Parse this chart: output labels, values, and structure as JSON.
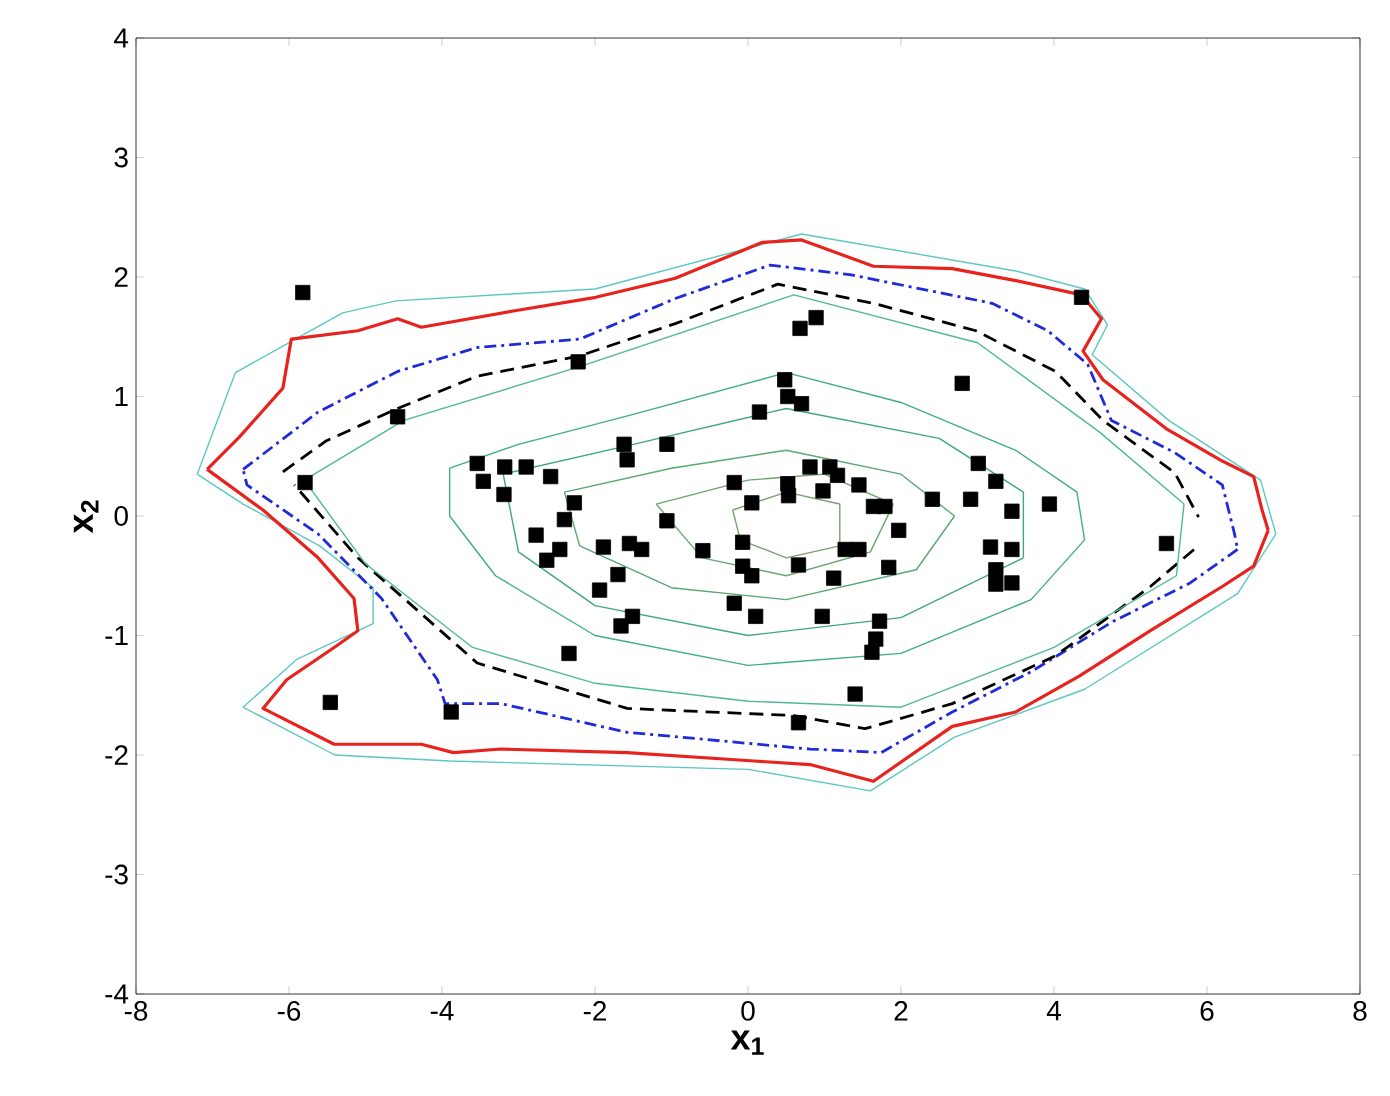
{
  "chart_data": {
    "type": "scatter",
    "xlabel": "x$_{1}$",
    "ylabel": "x$_{2}$",
    "xlim": [
      -8,
      8
    ],
    "ylim": [
      -4,
      4
    ],
    "xticks": [
      -8,
      -6,
      -4,
      -2,
      0,
      2,
      4,
      6,
      8
    ],
    "yticks": [
      -4,
      -3,
      -2,
      -1,
      0,
      1,
      2,
      3,
      4
    ],
    "series": [
      {
        "type": "line",
        "color": "#5cc8c0",
        "line_style": "solid",
        "x": [
          -7.2,
          -6.7,
          -5.3,
          -4.6,
          -2.0,
          0.7,
          3.5,
          4.4,
          4.7,
          4.5,
          5.5,
          6.7,
          6.9
        ],
        "values": [
          0.35,
          1.2,
          1.7,
          1.8,
          1.9,
          2.36,
          2.05,
          1.9,
          1.6,
          1.35,
          0.8,
          0.3,
          -0.15
        ]
      },
      {
        "type": "line",
        "color": "#5cc8c0",
        "line_style": "solid",
        "x": [
          6.9,
          6.4,
          4.4,
          2.7,
          1.6,
          0.0,
          -3.9,
          -5.4,
          -6.6,
          -5.9,
          -4.9,
          -4.9,
          -5.6,
          -6.6,
          -7.2
        ],
        "values": [
          -0.15,
          -0.65,
          -1.45,
          -1.85,
          -2.3,
          -2.12,
          -2.05,
          -2.0,
          -1.6,
          -1.2,
          -0.9,
          -0.6,
          -0.25,
          0.1,
          0.35
        ]
      },
      {
        "type": "line",
        "color": "#e8231e",
        "line_style": "solid",
        "x": [
          -7.07,
          -6.65,
          -6.08,
          -5.97,
          -5.1,
          -4.58,
          -4.27,
          -3.03,
          -1.99,
          -0.95,
          0.19,
          0.7,
          1.64,
          2.67,
          3.5,
          4.36,
          4.62,
          4.38,
          4.64,
          5.47,
          6.2,
          6.61,
          6.72,
          6.8
        ],
        "values": [
          0.39,
          0.66,
          1.07,
          1.48,
          1.55,
          1.65,
          1.58,
          1.72,
          1.83,
          1.99,
          2.29,
          2.31,
          2.09,
          2.07,
          1.97,
          1.85,
          1.65,
          1.38,
          1.14,
          0.73,
          0.46,
          0.33,
          0.05,
          -0.12
        ]
      },
      {
        "type": "line",
        "color": "#e8231e",
        "line_style": "solid",
        "x": [
          6.8,
          6.61,
          6.2,
          5.26,
          4.33,
          3.5,
          2.67,
          1.64,
          0.81,
          0.08,
          -1.58,
          -3.23,
          -3.85,
          -4.27,
          -5.41,
          -6.34,
          -6.03,
          -5.41,
          -5.1,
          -5.15,
          -5.62,
          -6.34,
          -7.07
        ],
        "values": [
          -0.12,
          -0.42,
          -0.59,
          -0.96,
          -1.34,
          -1.64,
          -1.76,
          -2.22,
          -2.08,
          -2.05,
          -1.98,
          -1.95,
          -1.98,
          -1.91,
          -1.91,
          -1.61,
          -1.37,
          -1.1,
          -0.96,
          -0.69,
          -0.35,
          0.05,
          0.39
        ]
      },
      {
        "type": "line",
        "color": "#1f2bd8",
        "line_style": "dashdot",
        "x": [
          -6.6,
          -5.62,
          -4.58,
          -3.54,
          -2.2,
          -0.95,
          0.29,
          1.33,
          3.19,
          3.92,
          4.44,
          4.75,
          5.58,
          6.2,
          6.36,
          6.4
        ],
        "values": [
          0.39,
          0.87,
          1.21,
          1.41,
          1.48,
          1.82,
          2.1,
          2.02,
          1.78,
          1.55,
          1.27,
          0.8,
          0.53,
          0.26,
          -0.15,
          -0.28
        ]
      },
      {
        "type": "line",
        "color": "#1f2bd8",
        "line_style": "dashdot",
        "x": [
          6.4,
          5.78,
          4.75,
          3.71,
          2.67,
          1.74,
          0.81,
          -1.58,
          -3.23,
          -3.96,
          -4.06,
          -4.79,
          -5.62,
          -6.55,
          -6.6
        ],
        "values": [
          -0.28,
          -0.56,
          -0.89,
          -1.3,
          -1.64,
          -1.98,
          -1.95,
          -1.81,
          -1.57,
          -1.57,
          -1.37,
          -0.69,
          -0.15,
          0.26,
          0.39
        ]
      },
      {
        "type": "line",
        "color": "#000000",
        "line_style": "dashed",
        "x": [
          -6.08,
          -5.51,
          -4.58,
          -3.54,
          -2.2,
          -0.95,
          0.39,
          1.64,
          2.98,
          4.02,
          4.64,
          5.58,
          5.89
        ],
        "values": [
          0.37,
          0.63,
          0.9,
          1.17,
          1.34,
          1.61,
          1.94,
          1.78,
          1.55,
          1.21,
          0.8,
          0.36,
          -0.01
        ]
      },
      {
        "type": "line",
        "color": "#000000",
        "line_style": "dashed",
        "x": [
          5.83,
          5.26,
          4.02,
          2.67,
          1.53,
          0.6,
          -1.58,
          -3.54,
          -5.1,
          -5.93
        ],
        "values": [
          -0.28,
          -0.59,
          -1.17,
          -1.57,
          -1.78,
          -1.67,
          -1.61,
          -1.23,
          -0.35,
          0.26
        ]
      },
      {
        "type": "line",
        "color": "#4fb89a",
        "line_style": "solid",
        "x": [
          -5.8,
          -4.5,
          -2.2,
          0.6,
          3.0,
          4.6,
          5.7
        ],
        "values": [
          0.3,
          0.8,
          1.25,
          1.85,
          1.45,
          0.7,
          0.1
        ]
      },
      {
        "type": "line",
        "color": "#4fb89a",
        "line_style": "solid",
        "x": [
          5.7,
          5.6,
          4.0,
          2.0,
          0.0,
          -2.0,
          -3.6,
          -5.0,
          -5.8
        ],
        "values": [
          0.1,
          -0.5,
          -1.1,
          -1.6,
          -1.55,
          -1.4,
          -1.1,
          -0.4,
          0.3
        ]
      },
      {
        "type": "line",
        "color": "#3fae84",
        "line_style": "solid",
        "x": [
          -3.9,
          -3.0,
          -1.5,
          0.5,
          2.0,
          3.5,
          4.3,
          4.4
        ],
        "values": [
          0.4,
          0.6,
          0.85,
          1.2,
          0.95,
          0.55,
          0.2,
          -0.2
        ]
      },
      {
        "type": "line",
        "color": "#3fae84",
        "line_style": "solid",
        "x": [
          4.4,
          3.7,
          2.0,
          0.0,
          -2.0,
          -3.3,
          -3.9,
          -3.9
        ],
        "values": [
          -0.2,
          -0.7,
          -1.15,
          -1.25,
          -1.0,
          -0.5,
          0.0,
          0.4
        ]
      },
      {
        "type": "line",
        "color": "#3fa878",
        "line_style": "solid",
        "x": [
          -3.2,
          -1.5,
          0.5,
          2.5,
          3.6,
          3.6
        ],
        "values": [
          0.35,
          0.6,
          0.9,
          0.65,
          0.2,
          -0.35
        ]
      },
      {
        "type": "line",
        "color": "#3fa878",
        "line_style": "solid",
        "x": [
          3.6,
          2.0,
          0.0,
          -2.0,
          -3.0,
          -3.2
        ],
        "values": [
          -0.35,
          -0.85,
          -1.0,
          -0.75,
          -0.3,
          0.35
        ]
      },
      {
        "type": "line",
        "color": "#58a872",
        "line_style": "solid",
        "x": [
          -2.4,
          -1.0,
          0.5,
          2.0,
          2.7
        ],
        "values": [
          0.2,
          0.4,
          0.55,
          0.35,
          0.0
        ]
      },
      {
        "type": "line",
        "color": "#58a872",
        "line_style": "solid",
        "x": [
          2.7,
          2.2,
          0.5,
          -1.0,
          -2.2,
          -2.4
        ],
        "values": [
          0.0,
          -0.45,
          -0.7,
          -0.6,
          -0.25,
          0.2
        ]
      },
      {
        "type": "line",
        "color": "#6aa56e",
        "line_style": "solid",
        "x": [
          -1.2,
          0.0,
          1.0,
          1.9
        ],
        "values": [
          0.1,
          0.3,
          0.35,
          0.1
        ]
      },
      {
        "type": "line",
        "color": "#6aa56e",
        "line_style": "solid",
        "x": [
          1.9,
          1.6,
          0.5,
          -0.6,
          -1.2
        ],
        "values": [
          0.1,
          -0.3,
          -0.5,
          -0.35,
          0.1
        ]
      },
      {
        "type": "line",
        "color": "#7aa070",
        "line_style": "solid",
        "x": [
          -0.2,
          0.5,
          1.2,
          1.2
        ],
        "values": [
          0.05,
          0.2,
          0.1,
          -0.25
        ]
      },
      {
        "type": "line",
        "color": "#7aa070",
        "line_style": "solid",
        "x": [
          1.2,
          0.5,
          -0.1,
          -0.2
        ],
        "values": [
          -0.25,
          -0.35,
          -0.2,
          0.05
        ]
      },
      {
        "color": "#000000",
        "marker": "square",
        "x": [
          -5.82,
          4.36,
          -2.22,
          0.68,
          0.89,
          2.8,
          -4.58,
          0.48,
          0.52,
          0.7,
          0.15,
          -5.79,
          -1.62,
          -1.58,
          -1.06,
          -3.54,
          -3.46,
          -3.18,
          -2.9,
          -3.19,
          -2.58,
          -2.27,
          -2.4,
          -2.77,
          -2.46,
          -2.63,
          -1.89,
          -1.55,
          -1.39,
          -1.7,
          -1.94,
          -1.51,
          -1.66,
          -2.34,
          -1.06,
          -0.59,
          -0.18,
          0.05,
          0.52,
          0.53,
          0.81,
          1.07,
          1.17,
          0.98,
          1.45,
          1.64,
          1.79,
          1.97,
          -0.07,
          -0.07,
          0.05,
          0.66,
          -0.18,
          0.1,
          0.97,
          1.12,
          1.27,
          1.45,
          1.84,
          1.72,
          1.67,
          1.62,
          1.4,
          0.66,
          2.41,
          2.91,
          3.01,
          3.24,
          3.45,
          3.94,
          3.17,
          3.45,
          3.24,
          3.24,
          3.45,
          5.47,
          -5.46,
          -3.88
        ],
        "values": [
          1.87,
          1.83,
          1.29,
          1.57,
          1.66,
          1.11,
          0.83,
          1.14,
          1.0,
          0.94,
          0.87,
          0.28,
          0.6,
          0.47,
          0.6,
          0.44,
          0.29,
          0.41,
          0.41,
          0.18,
          0.33,
          0.11,
          -0.03,
          -0.16,
          -0.28,
          -0.37,
          -0.26,
          -0.23,
          -0.28,
          -0.49,
          -0.62,
          -0.84,
          -0.92,
          -1.15,
          -0.04,
          -0.29,
          0.28,
          0.11,
          0.27,
          0.17,
          0.41,
          0.41,
          0.34,
          0.21,
          0.26,
          0.08,
          0.08,
          -0.12,
          -0.22,
          -0.42,
          -0.5,
          -0.41,
          -0.73,
          -0.84,
          -0.84,
          -0.52,
          -0.28,
          -0.28,
          -0.43,
          -0.88,
          -1.03,
          -1.14,
          -1.49,
          -1.73,
          0.14,
          0.14,
          0.44,
          0.29,
          0.04,
          0.1,
          -0.26,
          -0.28,
          -0.45,
          -0.57,
          -0.56,
          -0.23,
          -1.56,
          -1.64
        ]
      }
    ]
  }
}
